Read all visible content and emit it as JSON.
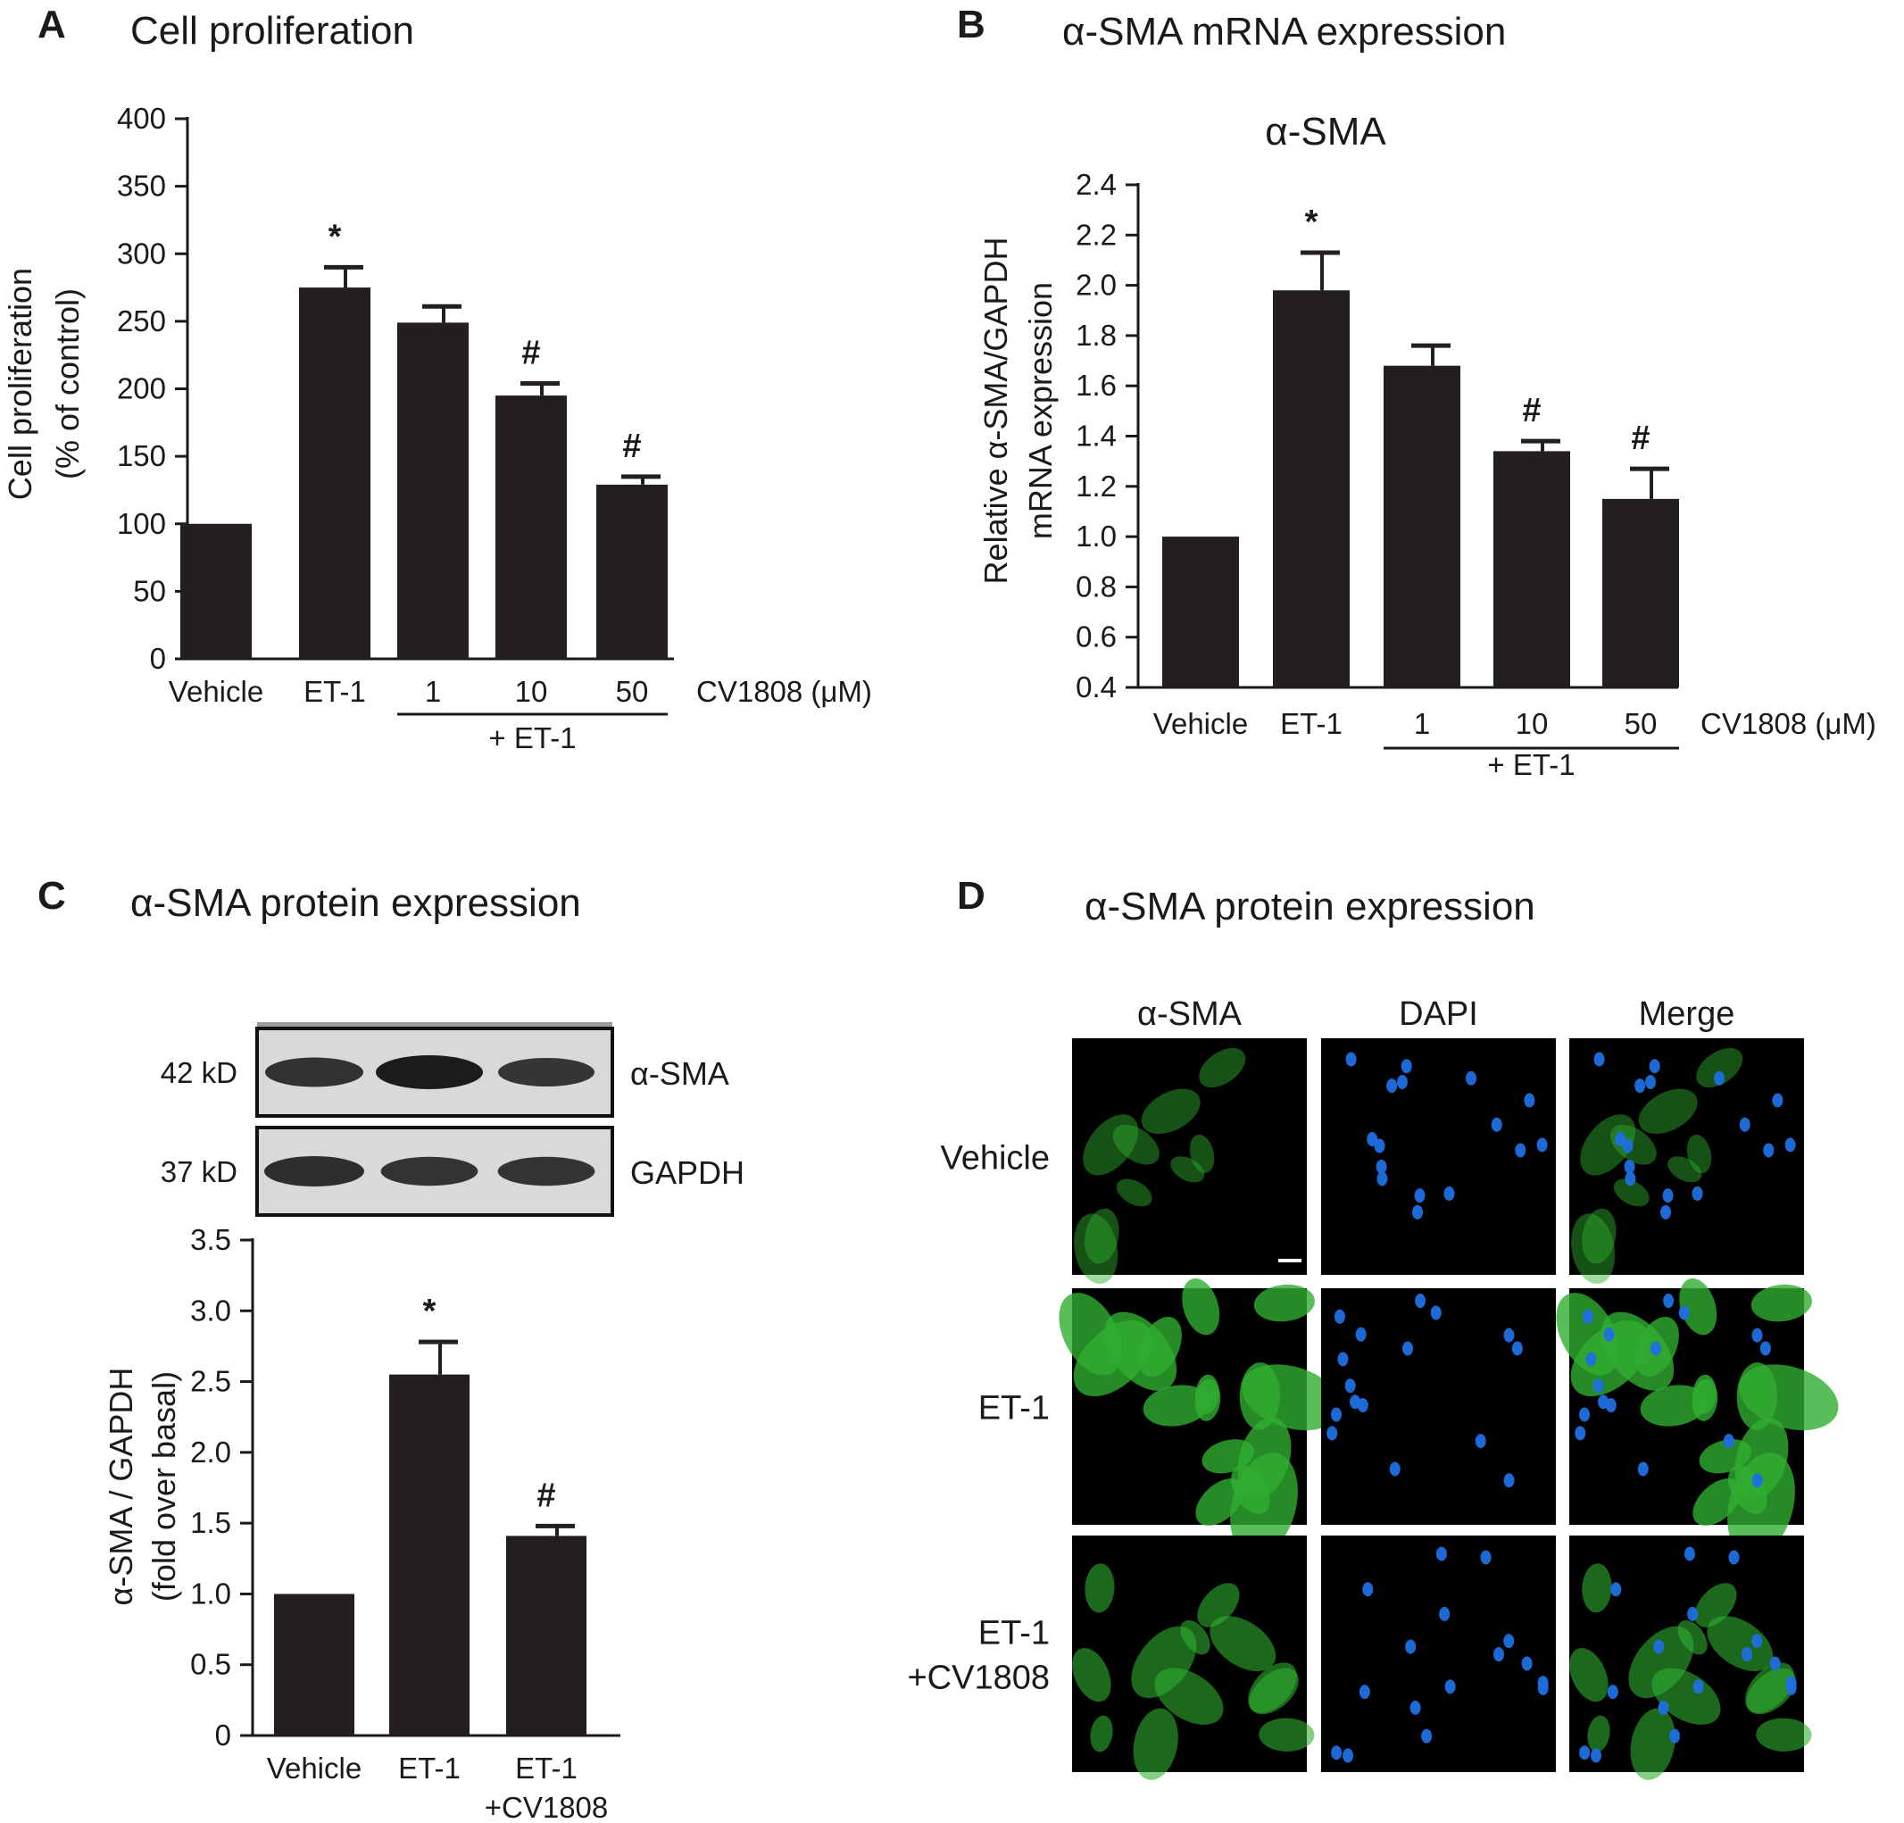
{
  "panels": {
    "A": {
      "letter": "A",
      "title": "Cell proliferation"
    },
    "B": {
      "letter": "B",
      "title": "α-SMA mRNA expression"
    },
    "C": {
      "letter": "C",
      "title": "α-SMA protein expression"
    },
    "D": {
      "letter": "D",
      "title": "α-SMA protein expression"
    }
  },
  "chart_data": [
    {
      "id": "A",
      "type": "bar",
      "title": "",
      "ylabel": [
        "Cell proliferation",
        "(% of control)"
      ],
      "ylim": [
        0,
        400
      ],
      "yticks": [
        0,
        50,
        100,
        150,
        200,
        250,
        300,
        350,
        400
      ],
      "ytick_labels": [
        "0",
        "50",
        "100",
        "150",
        "200",
        "250",
        "300",
        "350",
        "400"
      ],
      "categories": [
        "Vehicle",
        "ET-1",
        "1",
        "10",
        "50"
      ],
      "values": [
        100,
        275,
        249,
        195,
        129
      ],
      "errors": [
        0,
        15,
        12,
        9,
        6
      ],
      "significance": [
        "",
        "*",
        "",
        "#",
        "#"
      ],
      "treatment_label": "CV1808 (μM)",
      "group_label": "+ ET-1",
      "group_span": [
        2,
        4
      ],
      "bar_color": "#231f20"
    },
    {
      "id": "B",
      "type": "bar",
      "title": "α-SMA",
      "ylabel": [
        "Relative α-SMA/GAPDH",
        "mRNA expression"
      ],
      "ylim": [
        0.4,
        2.4
      ],
      "yticks": [
        0.4,
        0.6,
        0.8,
        1.0,
        1.2,
        1.4,
        1.6,
        1.8,
        2.0,
        2.2,
        2.4
      ],
      "ytick_labels": [
        "0.4",
        "0.6",
        "0.8",
        "1.0",
        "1.2",
        "1.4",
        "1.6",
        "1.8",
        "2.0",
        "2.2",
        "2.4"
      ],
      "categories": [
        "Vehicle",
        "ET-1",
        "1",
        "10",
        "50"
      ],
      "values": [
        1.0,
        1.98,
        1.68,
        1.34,
        1.15
      ],
      "errors": [
        0,
        0.15,
        0.08,
        0.04,
        0.12
      ],
      "significance": [
        "",
        "*",
        "",
        "#",
        "#"
      ],
      "treatment_label": "CV1808 (μM)",
      "group_label": "+ ET-1",
      "group_span": [
        2,
        4
      ],
      "bar_color": "#231f20"
    },
    {
      "id": "C",
      "type": "bar",
      "title": "",
      "ylabel": [
        "α-SMA / GAPDH",
        "(fold over basal)"
      ],
      "ylim": [
        0,
        3.5
      ],
      "yticks": [
        0,
        0.5,
        1.0,
        1.5,
        2.0,
        2.5,
        3.0,
        3.5
      ],
      "ytick_labels": [
        "0",
        "0.5",
        "1.0",
        "1.5",
        "2.0",
        "2.5",
        "3.0",
        "3.5"
      ],
      "categories": [
        [
          "Vehicle"
        ],
        [
          "ET-1"
        ],
        [
          "ET-1",
          "+CV1808"
        ]
      ],
      "values": [
        1.0,
        2.55,
        1.41
      ],
      "errors": [
        0,
        0.23,
        0.07
      ],
      "significance": [
        "",
        "*",
        "#"
      ],
      "bar_color": "#231f20"
    }
  ],
  "blot": {
    "rows": [
      {
        "marker": "42 kD",
        "label": "α-SMA",
        "intensities": [
          0.75,
          1.0,
          0.7
        ]
      },
      {
        "marker": "37 kD",
        "label": "GAPDH",
        "intensities": [
          0.8,
          0.72,
          0.72
        ]
      }
    ]
  },
  "micrographs": {
    "columns": [
      "α-SMA",
      "DAPI",
      "Merge"
    ],
    "rows": [
      [
        "Vehicle"
      ],
      [
        "ET-1"
      ],
      [
        "ET-1",
        "+CV1808"
      ]
    ],
    "stain_colors": {
      "actin": "#2fae2f",
      "nuclei": "#1f6fe0",
      "background": "#000000"
    }
  }
}
